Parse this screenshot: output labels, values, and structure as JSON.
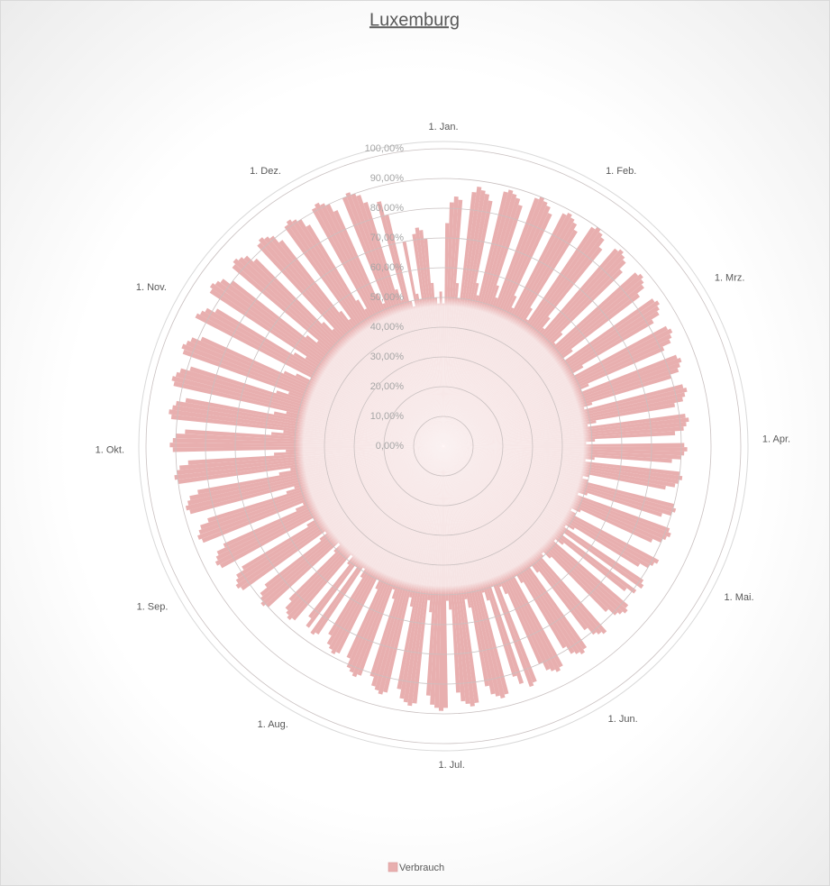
{
  "chart_data": {
    "type": "radar",
    "title": "Luxemburg",
    "legend": "bottom",
    "ylim": [
      0,
      100
    ],
    "yticks": [
      {
        "value": 0,
        "label": "0,00%"
      },
      {
        "value": 10,
        "label": "10,00%"
      },
      {
        "value": 20,
        "label": "20,00%"
      },
      {
        "value": 30,
        "label": "30,00%"
      },
      {
        "value": 40,
        "label": "40,00%"
      },
      {
        "value": 50,
        "label": "50,00%"
      },
      {
        "value": 60,
        "label": "60,00%"
      },
      {
        "value": 70,
        "label": "70,00%"
      },
      {
        "value": 80,
        "label": "80,00%"
      },
      {
        "value": 90,
        "label": "90,00%"
      },
      {
        "value": 100,
        "label": "100,00%"
      }
    ],
    "categories": [
      "1. Jan.",
      null,
      null,
      null,
      null,
      null,
      null,
      null,
      null,
      null,
      null,
      null,
      null,
      null,
      null,
      null,
      null,
      null,
      null,
      null,
      null,
      null,
      null,
      null,
      null,
      null,
      null,
      null,
      null,
      null,
      null,
      "1. Feb.",
      null,
      null,
      null,
      null,
      null,
      null,
      null,
      null,
      null,
      null,
      null,
      null,
      null,
      null,
      null,
      null,
      null,
      null,
      null,
      null,
      null,
      null,
      null,
      null,
      null,
      null,
      null,
      "1. Mrz.",
      null,
      null,
      null,
      null,
      null,
      null,
      null,
      null,
      null,
      null,
      null,
      null,
      null,
      null,
      null,
      null,
      null,
      null,
      null,
      null,
      null,
      null,
      null,
      null,
      null,
      null,
      null,
      null,
      null,
      null,
      "1. Apr.",
      null,
      null,
      null,
      null,
      null,
      null,
      null,
      null,
      null,
      null,
      null,
      null,
      null,
      null,
      null,
      null,
      null,
      null,
      null,
      null,
      null,
      null,
      null,
      null,
      null,
      null,
      null,
      null,
      null,
      "1. Mai.",
      null,
      null,
      null,
      null,
      null,
      null,
      null,
      null,
      null,
      null,
      null,
      null,
      null,
      null,
      null,
      null,
      null,
      null,
      null,
      null,
      null,
      null,
      null,
      null,
      null,
      null,
      null,
      null,
      null,
      null,
      "1. Jun.",
      null,
      null,
      null,
      null,
      null,
      null,
      null,
      null,
      null,
      null,
      null,
      null,
      null,
      null,
      null,
      null,
      null,
      null,
      null,
      null,
      null,
      null,
      null,
      null,
      null,
      null,
      null,
      null,
      null,
      "1. Jul.",
      null,
      null,
      null,
      null,
      null,
      null,
      null,
      null,
      null,
      null,
      null,
      null,
      null,
      null,
      null,
      null,
      null,
      null,
      null,
      null,
      null,
      null,
      null,
      null,
      null,
      null,
      null,
      null,
      null,
      null,
      "1. Aug.",
      null,
      null,
      null,
      null,
      null,
      null,
      null,
      null,
      null,
      null,
      null,
      null,
      null,
      null,
      null,
      null,
      null,
      null,
      null,
      null,
      null,
      null,
      null,
      null,
      null,
      null,
      null,
      null,
      null,
      null,
      "1. Sep.",
      null,
      null,
      null,
      null,
      null,
      null,
      null,
      null,
      null,
      null,
      null,
      null,
      null,
      null,
      null,
      null,
      null,
      null,
      null,
      null,
      null,
      null,
      null,
      null,
      null,
      null,
      null,
      null,
      null,
      "1. Okt.",
      null,
      null,
      null,
      null,
      null,
      null,
      null,
      null,
      null,
      null,
      null,
      null,
      null,
      null,
      null,
      null,
      null,
      null,
      null,
      null,
      null,
      null,
      null,
      null,
      null,
      null,
      null,
      null,
      null,
      null,
      "1. Nov.",
      null,
      null,
      null,
      null,
      null,
      null,
      null,
      null,
      null,
      null,
      null,
      null,
      null,
      null,
      null,
      null,
      null,
      null,
      null,
      null,
      null,
      null,
      null,
      null,
      null,
      null,
      null,
      null,
      null,
      "1. Dez.",
      null,
      null,
      null,
      null,
      null,
      null,
      null,
      null,
      null,
      null,
      null,
      null,
      null,
      null,
      null,
      null,
      null,
      null,
      null,
      null,
      null,
      null,
      null,
      null,
      null,
      null,
      null,
      null,
      null,
      null
    ],
    "series": [
      {
        "name": "Verbrauch",
        "color": "#e8afaf",
        "values": [
          48,
          75,
          82,
          84,
          83,
          55,
          50,
          86,
          88,
          87,
          86,
          84,
          56,
          52,
          88,
          89,
          88,
          87,
          85,
          57,
          53,
          89,
          90,
          89,
          88,
          86,
          56,
          52,
          88,
          89,
          88,
          87,
          85,
          55,
          51,
          89,
          90,
          89,
          88,
          85,
          56,
          52,
          88,
          89,
          88,
          87,
          84,
          55,
          51,
          87,
          88,
          87,
          86,
          83,
          54,
          50,
          86,
          87,
          86,
          85,
          82,
          54,
          50,
          85,
          86,
          85,
          84,
          81,
          53,
          50,
          84,
          85,
          84,
          83,
          80,
          52,
          49,
          83,
          84,
          83,
          82,
          79,
          52,
          49,
          82,
          83,
          82,
          81,
          78,
          51,
          48,
          81,
          82,
          81,
          80,
          77,
          51,
          48,
          80,
          81,
          80,
          79,
          76,
          50,
          48,
          50,
          80,
          81,
          80,
          77,
          51,
          48,
          81,
          82,
          81,
          80,
          77,
          51,
          48,
          50,
          82,
          81,
          80,
          77,
          52,
          49,
          81,
          82,
          50,
          81,
          78,
          52,
          49,
          82,
          83,
          82,
          81,
          78,
          52,
          49,
          50,
          83,
          82,
          81,
          78,
          53,
          50,
          83,
          84,
          83,
          82,
          79,
          53,
          50,
          84,
          85,
          84,
          83,
          80,
          54,
          51,
          85,
          86,
          50,
          84,
          81,
          54,
          51,
          86,
          87,
          86,
          85,
          82,
          55,
          52,
          87,
          88,
          87,
          86,
          83,
          55,
          52,
          88,
          89,
          88,
          87,
          84,
          56,
          52,
          87,
          88,
          87,
          86,
          83,
          55,
          52,
          85,
          86,
          85,
          84,
          81,
          54,
          51,
          82,
          83,
          82,
          81,
          78,
          53,
          50,
          78,
          79,
          78,
          77,
          74,
          52,
          49,
          76,
          77,
          50,
          76,
          73,
          51,
          48,
          77,
          78,
          77,
          76,
          73,
          51,
          48,
          80,
          81,
          80,
          79,
          76,
          52,
          49,
          83,
          84,
          83,
          82,
          79,
          53,
          50,
          85,
          86,
          85,
          84,
          81,
          54,
          51,
          87,
          88,
          87,
          86,
          83,
          55,
          52,
          88,
          89,
          88,
          87,
          84,
          56,
          52,
          90,
          91,
          90,
          89,
          86,
          57,
          53,
          91,
          92,
          91,
          90,
          87,
          58,
          54,
          92,
          93,
          92,
          91,
          88,
          58,
          54,
          93,
          94,
          93,
          92,
          89,
          59,
          55,
          93,
          94,
          93,
          92,
          89,
          59,
          55,
          50,
          94,
          93,
          92,
          89,
          59,
          55,
          94,
          95,
          94,
          93,
          90,
          59,
          55,
          93,
          94,
          93,
          92,
          89,
          58,
          54,
          92,
          93,
          92,
          91,
          88,
          57,
          53,
          91,
          92,
          91,
          90,
          87,
          57,
          53,
          91,
          92,
          91,
          90,
          87,
          56,
          52,
          90,
          91,
          90,
          89,
          86,
          55,
          51,
          85,
          80,
          50,
          48,
          70,
          52,
          50,
          72,
          74,
          73,
          70,
          55,
          50,
          48,
          52
        ]
      }
    ]
  }
}
